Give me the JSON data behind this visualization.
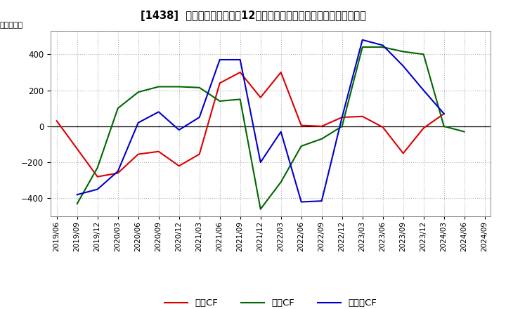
{
  "title": "[1438]  キャッシュフローの12か月移動合計の対前年同期増減額の推移",
  "ylabel": "（百万円）",
  "ylim": [
    -500,
    530
  ],
  "yticks": [
    -400,
    -200,
    0,
    200,
    400
  ],
  "legend_labels": [
    "営業CF",
    "投資CF",
    "フリーCF"
  ],
  "colors": {
    "営業CF": "#dd0000",
    "投資CF": "#006600",
    "フリーCF": "#0000cc"
  },
  "dates": [
    "2019/06",
    "2019/09",
    "2019/12",
    "2020/03",
    "2020/06",
    "2020/09",
    "2020/12",
    "2021/03",
    "2021/06",
    "2021/09",
    "2021/12",
    "2022/03",
    "2022/06",
    "2022/09",
    "2022/12",
    "2023/03",
    "2023/06",
    "2023/09",
    "2023/12",
    "2024/03",
    "2024/06",
    "2024/09"
  ],
  "営業CF": [
    30,
    null,
    -280,
    -260,
    -155,
    -140,
    -220,
    -155,
    240,
    300,
    160,
    300,
    5,
    0,
    50,
    55,
    -5,
    -150,
    -10,
    70,
    null,
    null
  ],
  "投資CF": [
    null,
    -430,
    -230,
    100,
    190,
    220,
    220,
    215,
    140,
    150,
    -460,
    -310,
    -110,
    -70,
    0,
    440,
    440,
    415,
    400,
    0,
    -30,
    null
  ],
  "フリーCF": [
    null,
    -380,
    -350,
    -250,
    20,
    80,
    -20,
    50,
    370,
    370,
    -200,
    -30,
    -420,
    -415,
    50,
    480,
    450,
    335,
    200,
    70,
    null,
    null
  ],
  "background_color": "#ffffff",
  "grid_color": "#aaaaaa",
  "grid_style": ":"
}
